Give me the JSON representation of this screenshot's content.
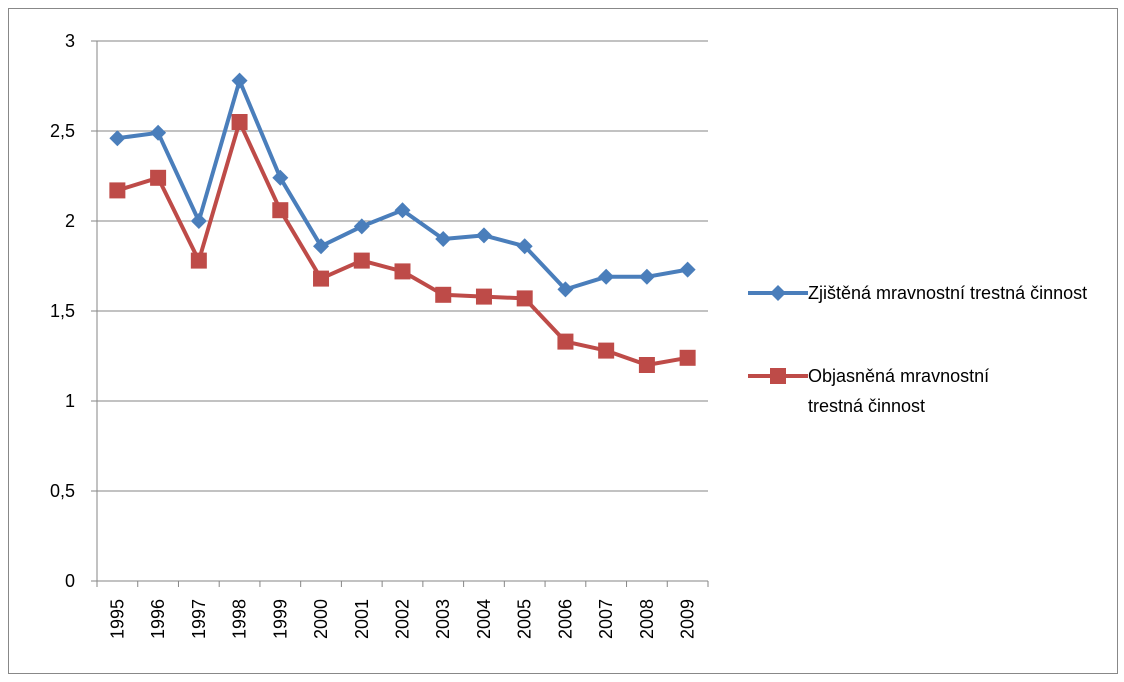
{
  "chart_data": {
    "type": "line",
    "categories": [
      "1995",
      "1996",
      "1997",
      "1998",
      "1999",
      "2000",
      "2001",
      "2002",
      "2003",
      "2004",
      "2005",
      "2006",
      "2007",
      "2008",
      "2009"
    ],
    "series": [
      {
        "name": "Zjištěná mravnostní trestná činnost",
        "color": "#4a7ebb",
        "marker": "diamond",
        "values": [
          2.46,
          2.49,
          2.0,
          2.78,
          2.24,
          1.86,
          1.97,
          2.06,
          1.9,
          1.92,
          1.86,
          1.62,
          1.69,
          1.69,
          1.73
        ]
      },
      {
        "name": "Objasněná mravnostní trestná činnost",
        "color": "#be4b48",
        "marker": "square",
        "values": [
          2.17,
          2.24,
          1.78,
          2.55,
          2.06,
          1.68,
          1.78,
          1.72,
          1.59,
          1.58,
          1.57,
          1.33,
          1.28,
          1.2,
          1.24
        ]
      }
    ],
    "ylim": [
      0,
      3
    ],
    "yticks": [
      0,
      {
        "value": 0.5,
        "label": "0,5"
      },
      1,
      {
        "value": 1.5,
        "label": "1,5"
      },
      2,
      {
        "value": 2.5,
        "label": "2,5"
      },
      3
    ],
    "grid": true,
    "legend": "right"
  }
}
